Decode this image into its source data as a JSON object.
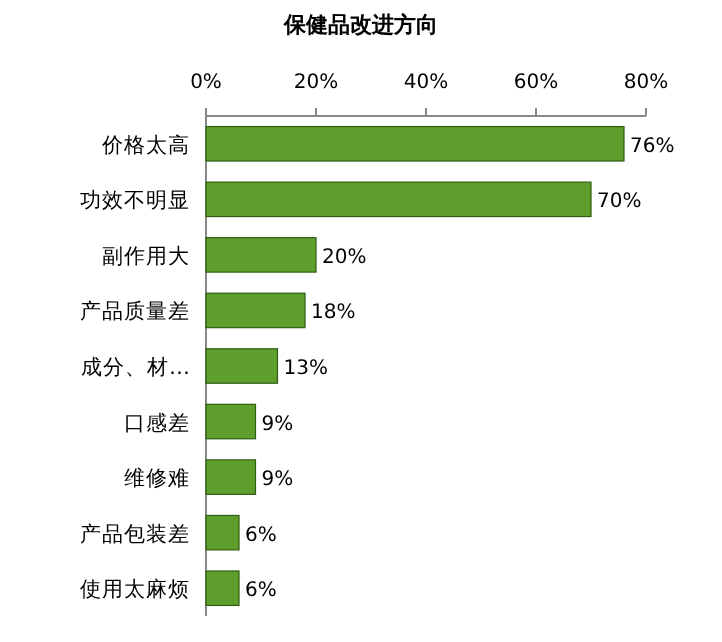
{
  "chart_data": {
    "type": "bar",
    "orientation": "horizontal",
    "title": "保健品改进方向",
    "categories": [
      "价格太高",
      "功效不明显",
      "副作用大",
      "产品质量差",
      "成分、材…",
      "口感差",
      "维修难",
      "产品包装差",
      "使用太麻烦"
    ],
    "values": [
      76,
      70,
      20,
      18,
      13,
      9,
      9,
      6,
      6
    ],
    "value_labels": [
      "76%",
      "70%",
      "20%",
      "18%",
      "13%",
      "9%",
      "9%",
      "6%",
      "6%"
    ],
    "color": "#5e9e2c",
    "xlim": [
      0,
      80
    ],
    "xticks": [
      {
        "value": 0,
        "label": "0%"
      },
      {
        "value": 20,
        "label": "20%"
      },
      {
        "value": 40,
        "label": "40%"
      },
      {
        "value": 60,
        "label": "60%"
      },
      {
        "value": 80,
        "label": "80%"
      }
    ],
    "grid": false
  }
}
